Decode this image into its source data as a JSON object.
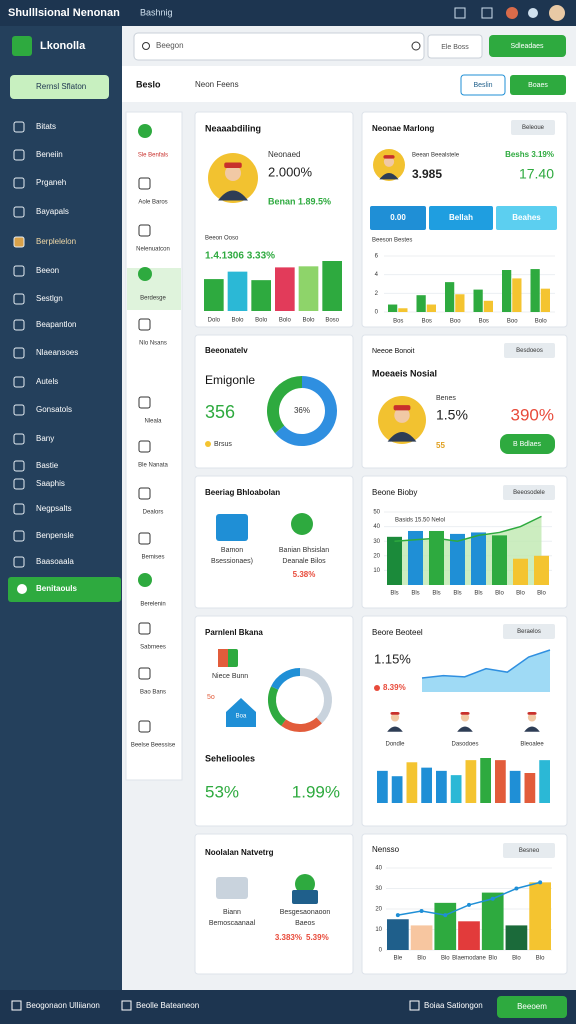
{
  "topbar": {
    "title": "Shulllsional Nenonan",
    "subtitle": "Bashnig"
  },
  "sidebar": {
    "brand": "Lkonolla",
    "button": "Rernsl Sflaton",
    "items": [
      "Bitats",
      "Beneiin",
      "Prganeh",
      "Bayapals",
      "Berplelelon",
      "Beeon",
      "Sestlgn",
      "Beapantlon",
      "Nlaeansoes",
      "Autels",
      "Gonsatols",
      "Bany",
      "Bastie",
      "Saaphis",
      "Negpsalts",
      "Benpensle",
      "Baasoaala"
    ],
    "active": "Benitaouls"
  },
  "search": {
    "placeholder": "Beegon",
    "filter": "Ele Boss",
    "button": "Sdleadaes"
  },
  "toolbar": {
    "title": "Beslo",
    "crumb": "Neon Feens",
    "outline_button": "Beslin",
    "button": "Boaes"
  },
  "subnav": [
    "Sle Benfals",
    "Aole Baros",
    "Nelenuatcon",
    "Berdesge",
    "Nlo Nsans",
    "Nleala",
    "Ble Nanata",
    "Dealors",
    "Bemises",
    "Berelenin",
    "Sabrnees",
    "Bao Bans",
    "Beelse Beessise"
  ],
  "cards": [
    {
      "title": "Neaaabdiling",
      "name": "Neonaed",
      "value": "2.000%",
      "delta": "Benan 1.89.5%",
      "subtitle": "Beeon Ooso",
      "kpi": "1.4.1306 3.33%",
      "chart": {
        "type": "bar",
        "categories": [
          "Dolo",
          "Bolo",
          "Bolo",
          "Bolo",
          "Bolo",
          "Boso"
        ],
        "values": [
          30,
          37,
          29,
          41,
          42,
          47
        ],
        "colors": [
          "#2eaa3f",
          "#2bb8d6",
          "#2eaa3f",
          "#e23b5a",
          "#8ed46a",
          "#2eaa3f"
        ]
      }
    },
    {
      "title": "Neonae Marlong",
      "chip": "Beleoue",
      "name": "Beean Beealstele",
      "value": "3.985",
      "delta": "Beshs 3.19%",
      "total": "17.40",
      "tabs": [
        "0.00",
        "Bellah",
        "Beahes"
      ],
      "caption": "Beeson Bestes",
      "chart": {
        "type": "bar",
        "categories": [
          "Bos",
          "Bos",
          "Boo",
          "Bos",
          "Boo",
          "Bolo"
        ],
        "ylim": [
          0,
          6
        ],
        "yticks": [
          0,
          2,
          4,
          6
        ],
        "series": [
          {
            "color": "#2eaa3f",
            "values": [
              0.8,
              1.8,
              3.2,
              2.4,
              4.5,
              4.6
            ]
          },
          {
            "color": "#f4c430",
            "values": [
              0.4,
              0.8,
              1.9,
              1.2,
              3.6,
              2.5
            ]
          }
        ]
      }
    },
    {
      "title": "Beeonatelv",
      "heading": "Emigonle",
      "value": "356",
      "legend": "Brsus",
      "donut": {
        "type": "pie",
        "segments": [
          64,
          36
        ],
        "colors": [
          "#2f8fe0",
          "#2eaa3f"
        ],
        "center": "36%"
      }
    },
    {
      "title": "Neeoe Bonoit",
      "chip": "Besdoeos",
      "heading": "Moeaeis Nosial",
      "name": "Benes",
      "value": "1.5%",
      "total": "390%",
      "note": "55",
      "button": "B Bdlaes"
    },
    {
      "title": "Beeriag Bhloabolan",
      "items": [
        [
          "Bamon",
          "Bsessionaes)"
        ],
        [
          "Banian Bhsislan",
          "Deanale Bilos"
        ]
      ],
      "value": "5.38%"
    },
    {
      "title": "Beone Bioby",
      "chip": "Beeosodele",
      "annotation": "Basids 15.50 Nelol",
      "chart": {
        "type": "bar",
        "categories": [
          "Bls",
          "Bls",
          "Bls",
          "Bls",
          "Bls",
          "Blo",
          "Blo",
          "Blo"
        ],
        "ylim": [
          0,
          50
        ],
        "yticks": [
          10,
          20,
          30,
          40,
          50
        ],
        "values": [
          33,
          37,
          37,
          35,
          36,
          34,
          18,
          20
        ],
        "colors": [
          "#1b8a3a",
          "#1f8fd6",
          "#2eaa3f",
          "#1f8fd6",
          "#1f8fd6",
          "#2eaa3f",
          "#f4c430",
          "#f4c430"
        ],
        "area": {
          "color": "#2eaa3f",
          "values": [
            30,
            31,
            32,
            30,
            34,
            36,
            40,
            47
          ]
        }
      }
    },
    {
      "title": "Parnlenl Bkana",
      "name": "Niece Bunn",
      "note": "5o",
      "icon_label": "Boa",
      "heading": "Seheliooles",
      "value": "53%",
      "total": "1.99%",
      "donut": {
        "type": "pie",
        "segments": [
          38,
          22,
          22,
          18
        ],
        "colors": [
          "#c9d3dd",
          "#e25c3b",
          "#2eaa3f",
          "#1f8fd6"
        ]
      }
    },
    {
      "title": "Beore Beoteel",
      "chip": "Beraelos",
      "value": "1.15%",
      "delta": "8.39%",
      "trend": {
        "type": "area",
        "color": "#2f8fe0",
        "values": [
          12,
          14,
          13,
          20,
          17,
          30,
          36
        ]
      },
      "people": [
        "Dondle",
        "Dasodoes",
        "Bleoalee"
      ],
      "chart": {
        "type": "bar",
        "values": [
          30,
          25,
          38,
          33,
          30,
          26,
          40,
          42,
          40,
          30,
          28,
          40
        ],
        "colors": [
          "#1f8fd6",
          "#1f8fd6",
          "#f4c430",
          "#1f8fd6",
          "#1f8fd6",
          "#2bb8d6",
          "#f4c430",
          "#2eaa3f",
          "#e25c3b",
          "#1f8fd6",
          "#e25c3b",
          "#2bb8d6"
        ]
      }
    },
    {
      "title": "Noolalan Natvetrg",
      "items": [
        [
          "Biann",
          "Bemoscaanaal"
        ],
        [
          "Besgesaonaoon",
          "Baeos"
        ]
      ],
      "figures": [
        "3.383%",
        "5.39%"
      ]
    },
    {
      "title": "Nensso",
      "chip": "Besneo",
      "chart": {
        "type": "bar",
        "categories": [
          "Ble",
          "Blo",
          "Blo",
          "Blaemodane",
          "Blo",
          "Blo",
          "Blo"
        ],
        "ylim": [
          0,
          40
        ],
        "yticks": [
          0,
          10,
          20,
          30,
          40
        ],
        "values": [
          15,
          12,
          23,
          14,
          28,
          12,
          33
        ],
        "colors": [
          "#1f5f8b",
          "#f7c6a0",
          "#2eaa3f",
          "#e23b3b",
          "#2eaa3f",
          "#1b6a3a",
          "#f4c430"
        ],
        "line": {
          "color": "#1f8fd6",
          "values": [
            17,
            19,
            17,
            22,
            25,
            30,
            33
          ]
        }
      }
    }
  ],
  "footer": {
    "left": "Beogonaon Ulliianon",
    "center": "Beolle Bateaneon",
    "right": "Boiaa Sationgon",
    "button": "Beeoem"
  }
}
